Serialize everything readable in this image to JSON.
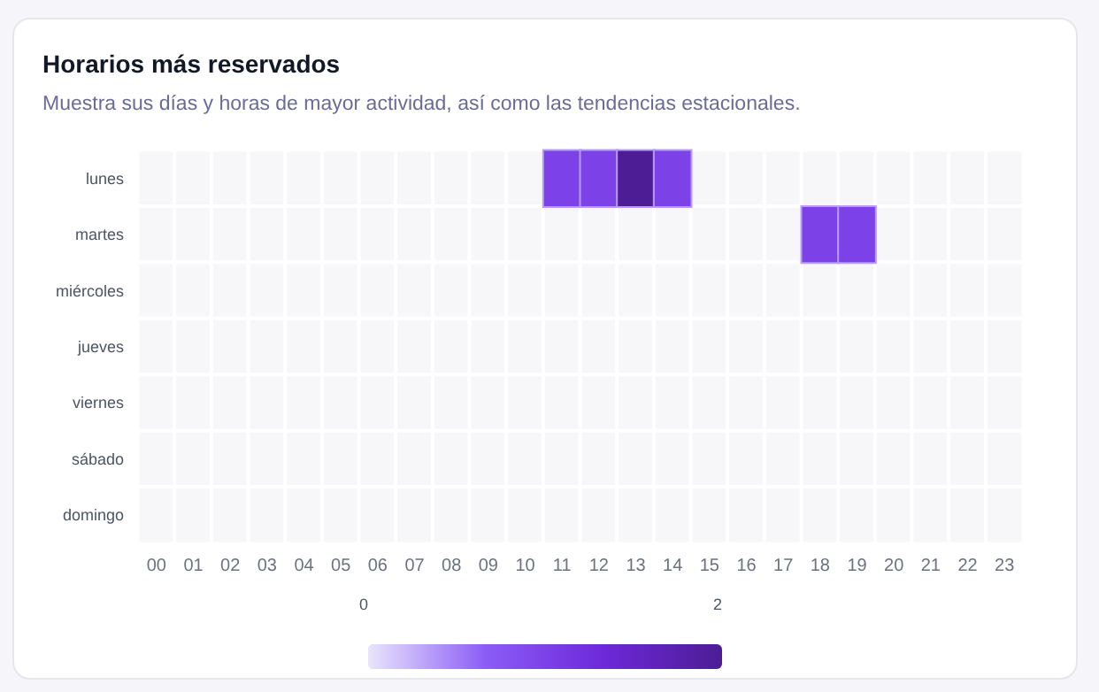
{
  "chart_data": {
    "type": "heatmap",
    "title": "Horarios más reservados",
    "subtitle": "Muestra sus días y horas de mayor actividad, así como las tendencias estacionales.",
    "categories": [
      "00",
      "01",
      "02",
      "03",
      "04",
      "05",
      "06",
      "07",
      "08",
      "09",
      "10",
      "11",
      "12",
      "13",
      "14",
      "15",
      "16",
      "17",
      "18",
      "19",
      "20",
      "21",
      "22",
      "23"
    ],
    "y_categories": [
      "lunes",
      "martes",
      "miércoles",
      "jueves",
      "viernes",
      "sábado",
      "domingo"
    ],
    "cells": [
      [
        null,
        null,
        null,
        null,
        null,
        null,
        null,
        null,
        null,
        null,
        null,
        1,
        1,
        2,
        1,
        null,
        null,
        null,
        null,
        null,
        null,
        null,
        null,
        null
      ],
      [
        null,
        null,
        null,
        null,
        null,
        null,
        null,
        null,
        null,
        null,
        null,
        null,
        null,
        null,
        null,
        null,
        null,
        null,
        1,
        1,
        null,
        null,
        null,
        null
      ],
      [
        null,
        null,
        null,
        null,
        null,
        null,
        null,
        null,
        null,
        null,
        null,
        null,
        null,
        null,
        null,
        null,
        null,
        null,
        null,
        null,
        null,
        null,
        null,
        null
      ],
      [
        null,
        null,
        null,
        null,
        null,
        null,
        null,
        null,
        null,
        null,
        null,
        null,
        null,
        null,
        null,
        null,
        null,
        null,
        null,
        null,
        null,
        null,
        null,
        null
      ],
      [
        null,
        null,
        null,
        null,
        null,
        null,
        null,
        null,
        null,
        null,
        null,
        null,
        null,
        null,
        null,
        null,
        null,
        null,
        null,
        null,
        null,
        null,
        null,
        null
      ],
      [
        null,
        null,
        null,
        null,
        null,
        null,
        null,
        null,
        null,
        null,
        null,
        null,
        null,
        null,
        null,
        null,
        null,
        null,
        null,
        null,
        null,
        null,
        null,
        null
      ],
      [
        null,
        null,
        null,
        null,
        null,
        null,
        null,
        null,
        null,
        null,
        null,
        null,
        null,
        null,
        null,
        null,
        null,
        null,
        null,
        null,
        null,
        null,
        null,
        null
      ]
    ],
    "clim": [
      0,
      2
    ],
    "cticks": [
      0,
      2
    ]
  }
}
